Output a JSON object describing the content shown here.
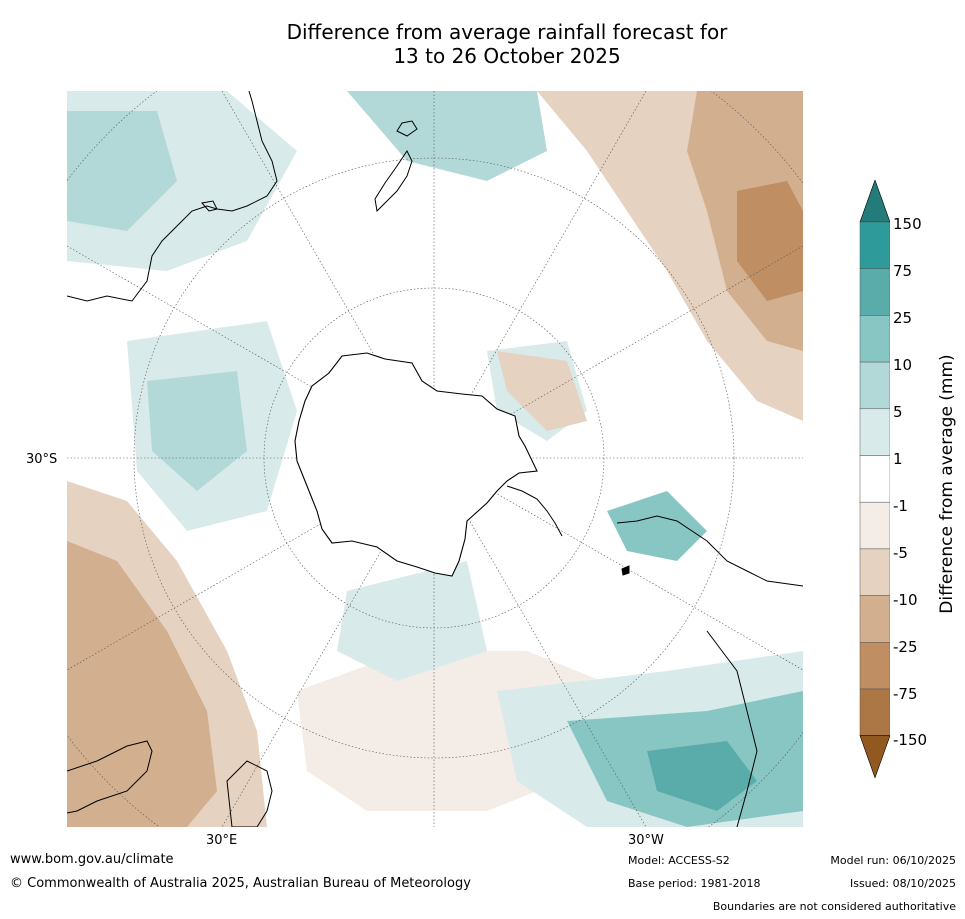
{
  "title": {
    "line1": "Difference from average rainfall forecast for",
    "line2": "13 to 26 October 2025"
  },
  "map_labels": {
    "lat_left": "30°S",
    "lon_left": "30°E",
    "lon_right": "30°W"
  },
  "colorbar": {
    "title": "Difference from average (mm)",
    "ticks": [
      "150",
      "75",
      "25",
      "10",
      "5",
      "1",
      "-1",
      "-5",
      "-10",
      "-25",
      "-75",
      "-150"
    ],
    "colors": [
      "#247b7b",
      "#2e9b9a",
      "#5aacab",
      "#88c6c4",
      "#b2d9d8",
      "#d8ebea",
      "#ffffff",
      "#f4ece6",
      "#e6d2c1",
      "#d2b08f",
      "#bf8e62",
      "#ad7745",
      "#91591f"
    ]
  },
  "footer": {
    "website": "www.bom.gov.au/climate",
    "copyright": "© Commonwealth of Australia 2025, Australian Bureau of Meteorology",
    "model": "Model: ACCESS-S2",
    "base_period": "Base period: 1981-2018",
    "model_run": "Model run: 06/10/2025",
    "issued": "Issued: 08/10/2025",
    "disclaimer": "Boundaries are not considered authoritative"
  },
  "colors": {
    "land_outline": "#000000",
    "graticule": "#555555",
    "background": "#ffffff"
  }
}
